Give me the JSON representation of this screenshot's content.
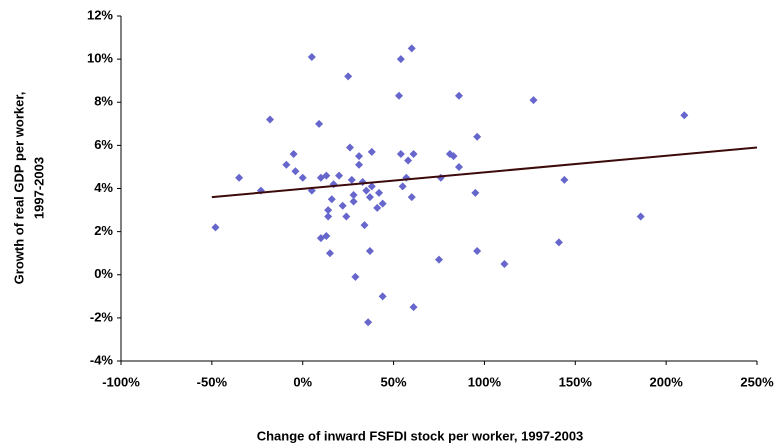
{
  "chart_data": {
    "type": "scatter",
    "xlabel": "Change of inward FSFDI stock per worker, 1997-2003",
    "ylabel": [
      "Growth of real GDP per worker,",
      "1997-2003"
    ],
    "color": "#6666cc",
    "x": [
      -48,
      -35,
      -23,
      -18,
      -9,
      -5,
      -4,
      0,
      5,
      5,
      9,
      10,
      10,
      13,
      13,
      14,
      14,
      15,
      16,
      17,
      20,
      22,
      24,
      25,
      26,
      27,
      28,
      28,
      29,
      31,
      31,
      33,
      34,
      35,
      36,
      37,
      37,
      38,
      38,
      41,
      42,
      44,
      44,
      53,
      54,
      54,
      55,
      57,
      58,
      60,
      61,
      60,
      61,
      75,
      76,
      81,
      83,
      86,
      86,
      95,
      96,
      96,
      111,
      127,
      141,
      144,
      186,
      210
    ],
    "values": [
      2.2,
      4.5,
      3.9,
      7.2,
      5.1,
      5.6,
      4.8,
      4.5,
      10.1,
      3.9,
      7.0,
      4.5,
      1.7,
      4.6,
      1.8,
      3.0,
      2.7,
      1.0,
      3.5,
      4.2,
      4.6,
      3.2,
      2.7,
      9.2,
      5.9,
      4.4,
      3.7,
      3.4,
      -0.1,
      5.5,
      5.1,
      4.3,
      2.3,
      3.9,
      -2.2,
      3.6,
      1.1,
      5.7,
      4.1,
      3.1,
      3.8,
      3.3,
      -1.0,
      8.3,
      5.6,
      10.0,
      4.1,
      4.5,
      5.3,
      10.5,
      5.6,
      3.6,
      -1.5,
      0.7,
      4.5,
      5.6,
      5.5,
      5.0,
      8.3,
      3.8,
      6.4,
      1.1,
      0.5,
      8.1,
      1.5,
      4.4,
      2.7,
      7.4
    ],
    "trendline": {
      "color": "#3d0a0a",
      "x": [
        -50,
        250
      ],
      "values": [
        3.6,
        5.9
      ]
    },
    "xlim": [
      -100,
      250
    ],
    "xticks": [
      {
        "value": -100,
        "label": "-100%"
      },
      {
        "value": -50,
        "label": "-50%"
      },
      {
        "value": 0,
        "label": "0%"
      },
      {
        "value": 50,
        "label": "50%"
      },
      {
        "value": 100,
        "label": "100%"
      },
      {
        "value": 150,
        "label": "150%"
      },
      {
        "value": 200,
        "label": "200%"
      },
      {
        "value": 250,
        "label": "250%"
      }
    ],
    "ylim": [
      -4,
      12
    ],
    "yticks": [
      {
        "value": -4,
        "label": "-4%"
      },
      {
        "value": -2,
        "label": "-2%"
      },
      {
        "value": 0,
        "label": "0%"
      },
      {
        "value": 2,
        "label": "2%"
      },
      {
        "value": 4,
        "label": "4%"
      },
      {
        "value": 6,
        "label": "6%"
      },
      {
        "value": 8,
        "label": "8%"
      },
      {
        "value": 10,
        "label": "10%"
      },
      {
        "value": 12,
        "label": "12%"
      }
    ],
    "grid": false
  }
}
